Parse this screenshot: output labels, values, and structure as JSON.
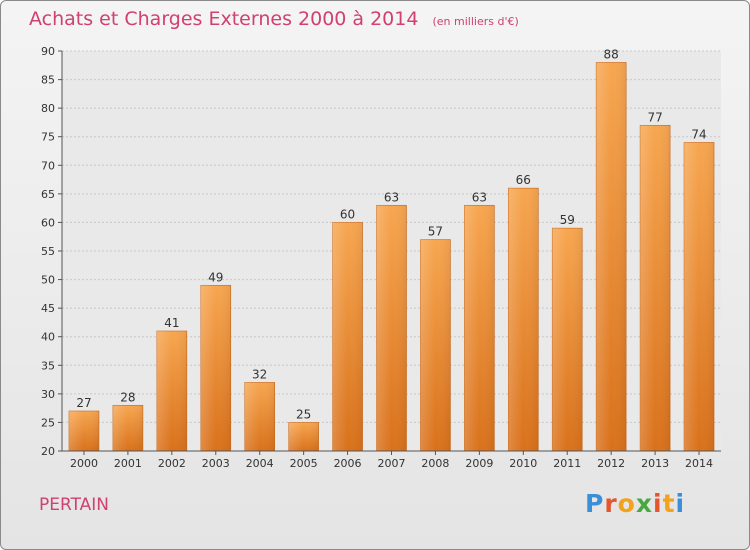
{
  "chart_data": {
    "type": "bar",
    "title": "Achats et Charges Externes 2000 à 2014",
    "subtitle": "(en milliers d'€)",
    "categories": [
      "2000",
      "2001",
      "2002",
      "2003",
      "2004",
      "2005",
      "2006",
      "2007",
      "2008",
      "2009",
      "2010",
      "2011",
      "2012",
      "2013",
      "2014"
    ],
    "values": [
      27,
      28,
      41,
      49,
      32,
      25,
      60,
      63,
      57,
      63,
      66,
      59,
      88,
      77,
      74
    ],
    "ylim": [
      20,
      90
    ],
    "yticks": [
      20,
      25,
      30,
      35,
      40,
      45,
      50,
      55,
      60,
      65,
      70,
      75,
      80,
      85,
      90
    ],
    "xlabel": "",
    "ylabel": "",
    "grid": true,
    "bar_color": "#f08a2c"
  },
  "place_name": "PERTAIN",
  "brand": {
    "letters": [
      "P",
      "r",
      "o",
      "x",
      "i",
      "t",
      "i"
    ],
    "colors": [
      "#3a8fd8",
      "#e4572e",
      "#f2a31b",
      "#4aa843",
      "#e4572e",
      "#f2a31b",
      "#3a8fd8"
    ]
  }
}
